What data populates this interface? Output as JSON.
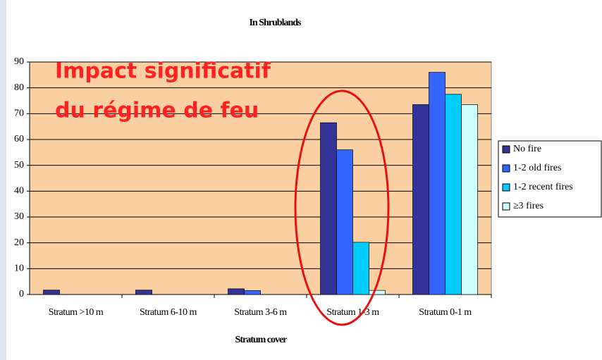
{
  "chart_data": {
    "type": "bar",
    "title": "In Shrublands",
    "xlabel": "Stratum cover",
    "categories": [
      "Stratum >10 m",
      "Stratum 6-10 m",
      "Stratum 3-6 m",
      "Stratum 1-3 m",
      "Stratum 0-1 m"
    ],
    "series": [
      {
        "name": "No fire",
        "color": "#333399",
        "values": [
          1.7,
          1.7,
          2.2,
          66.5,
          73.5
        ]
      },
      {
        "name": "1-2 old fires",
        "color": "#3366ff",
        "values": [
          0,
          0,
          1.5,
          56,
          86
        ]
      },
      {
        "name": "1-2 recent fires",
        "color": "#00ccff",
        "values": [
          0,
          0,
          0,
          20.2,
          77.5
        ]
      },
      {
        "name": "≥3 fires",
        "color": "#ccffff",
        "values": [
          0,
          0,
          0,
          1.6,
          73.5
        ]
      }
    ],
    "ylim": [
      0,
      90
    ],
    "yticks": [
      0,
      10,
      20,
      30,
      40,
      50,
      60,
      70,
      80,
      90
    ],
    "grid": true,
    "legend": "right",
    "annotations": [
      "Impact significatif",
      "du régime de feu"
    ]
  }
}
